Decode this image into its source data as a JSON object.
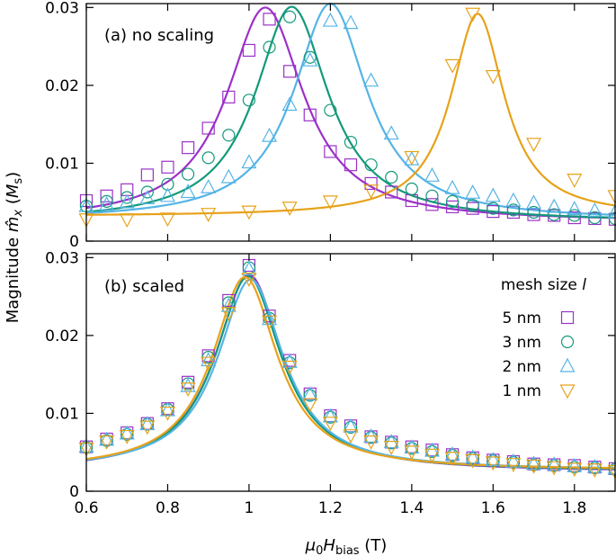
{
  "chart_data": {
    "type": "line",
    "colors": {
      "5 nm": "#9b31c8",
      "3 nm": "#13997a",
      "2 nm": "#55b4e6",
      "1 nm": "#e7a21a"
    },
    "x_ticks": [
      "0.6",
      "0.8",
      "1",
      "1.2",
      "1.4",
      "1.6",
      "1.8"
    ],
    "x_tick_values": [
      0.6,
      0.8,
      1.0,
      1.2,
      1.4,
      1.6,
      1.8
    ],
    "xlim": [
      0.6,
      1.9
    ],
    "xlabel": {
      "prefix": "μ",
      "sub0": "0",
      "H": "H",
      "subscript": "bias",
      "unit": " (T)"
    },
    "ylabel": {
      "prefix": "Magnitude ",
      "m": "m̂",
      "sub": "x",
      "unit_open": " (",
      "unit": "M",
      "unit_sub": "s",
      "unit_close": ")"
    },
    "legend": {
      "title": "mesh size ",
      "title_symbol": "l",
      "entries": [
        "5 nm",
        "3 nm",
        "2 nm",
        "1 nm"
      ],
      "markers": [
        "square",
        "circle",
        "triangle-up",
        "triangle-down"
      ]
    },
    "panels": [
      {
        "label": "(a) no scaling",
        "ylim": [
          0,
          0.0305
        ],
        "y_ticks": [
          "0",
          "0.01",
          "0.02",
          "0.03"
        ],
        "y_tick_values": [
          0,
          0.01,
          0.02,
          0.03
        ],
        "series": [
          {
            "name": "5 nm",
            "marker": "square",
            "curve": {
              "x0": 1.04,
              "gamma": 0.115,
              "amp": 0.0275,
              "base": 0.0025
            },
            "points_x": [
              0.6,
              0.65,
              0.7,
              0.75,
              0.8,
              0.85,
              0.9,
              0.95,
              1.0,
              1.05,
              1.1,
              1.15,
              1.2,
              1.25,
              1.3,
              1.35,
              1.4,
              1.45,
              1.5,
              1.55,
              1.6,
              1.65,
              1.7,
              1.75,
              1.8,
              1.85,
              1.9
            ],
            "points_y": [
              0.0052,
              0.0058,
              0.0066,
              0.0085,
              0.0095,
              0.012,
              0.0145,
              0.0185,
              0.0245,
              0.0285,
              0.0218,
              0.0162,
              0.0115,
              0.0098,
              0.0074,
              0.0063,
              0.0052,
              0.0047,
              0.0044,
              0.0042,
              0.0038,
              0.0037,
              0.0034,
              0.0033,
              0.003,
              0.0029,
              0.0028
            ]
          },
          {
            "name": "3 nm",
            "marker": "circle",
            "curve": {
              "x0": 1.105,
              "gamma": 0.11,
              "amp": 0.0276,
              "base": 0.0025
            },
            "points_x": [
              0.6,
              0.65,
              0.7,
              0.75,
              0.8,
              0.85,
              0.9,
              0.95,
              1.0,
              1.05,
              1.1,
              1.15,
              1.2,
              1.25,
              1.3,
              1.35,
              1.4,
              1.45,
              1.5,
              1.55,
              1.6,
              1.65,
              1.7,
              1.75,
              1.8,
              1.85,
              1.9
            ],
            "points_y": [
              0.0045,
              0.0051,
              0.0056,
              0.0063,
              0.0073,
              0.0086,
              0.0107,
              0.0136,
              0.0181,
              0.0249,
              0.0288,
              0.0236,
              0.0168,
              0.0127,
              0.0098,
              0.0082,
              0.0067,
              0.0058,
              0.0051,
              0.0046,
              0.0042,
              0.004,
              0.0037,
              0.0034,
              0.0033,
              0.003,
              0.0029
            ]
          },
          {
            "name": "2 nm",
            "marker": "triangle-up",
            "curve": {
              "x0": 1.2,
              "gamma": 0.11,
              "amp": 0.0278,
              "base": 0.0027
            },
            "points_x": [
              0.6,
              0.65,
              0.7,
              0.75,
              0.8,
              0.85,
              0.9,
              0.95,
              1.0,
              1.05,
              1.1,
              1.15,
              1.2,
              1.25,
              1.3,
              1.35,
              1.4,
              1.45,
              1.5,
              1.55,
              1.6,
              1.65,
              1.7,
              1.75,
              1.8,
              1.85,
              1.9
            ],
            "points_y": [
              0.0045,
              0.0047,
              0.005,
              0.0055,
              0.0058,
              0.0063,
              0.0069,
              0.0082,
              0.0101,
              0.0135,
              0.0175,
              0.0232,
              0.0283,
              0.028,
              0.0206,
              0.0138,
              0.0105,
              0.0084,
              0.0068,
              0.0062,
              0.0058,
              0.0052,
              0.0049,
              0.0044,
              0.0041,
              0.0039,
              0.0037
            ]
          },
          {
            "name": "1 nm",
            "marker": "triangle-down",
            "curve": {
              "x0": 1.562,
              "gamma": 0.08,
              "amp": 0.026,
              "base": 0.0032
            },
            "points_x": [
              0.6,
              0.7,
              0.8,
              0.9,
              1.0,
              1.1,
              1.2,
              1.3,
              1.4,
              1.5,
              1.55,
              1.6,
              1.7,
              1.8,
              1.9
            ],
            "points_y": [
              0.0028,
              0.0028,
              0.0029,
              0.0035,
              0.0038,
              0.0043,
              0.0051,
              0.0065,
              0.0108,
              0.0226,
              0.0292,
              0.0212,
              0.0125,
              0.0079,
              0.0058
            ]
          }
        ]
      },
      {
        "label": "(b) scaled",
        "ylim": [
          0,
          0.0305
        ],
        "y_ticks": [
          "0",
          "0.01",
          "0.02",
          "0.03"
        ],
        "y_tick_values": [
          0,
          0.01,
          0.02,
          0.03
        ],
        "series": [
          {
            "name": "5 nm",
            "marker": "square",
            "curve": {
              "x0": 1.0,
              "gamma": 0.1,
              "amp": 0.0253,
              "base": 0.0025
            },
            "points_x": [
              0.6,
              0.65,
              0.7,
              0.75,
              0.8,
              0.85,
              0.9,
              0.95,
              1.0,
              1.05,
              1.1,
              1.15,
              1.2,
              1.25,
              1.3,
              1.35,
              1.4,
              1.45,
              1.5,
              1.55,
              1.6,
              1.65,
              1.7,
              1.75,
              1.8,
              1.85,
              1.9
            ],
            "points_y": [
              0.0057,
              0.0067,
              0.0075,
              0.0087,
              0.0106,
              0.014,
              0.0174,
              0.0245,
              0.029,
              0.0225,
              0.0168,
              0.0125,
              0.0097,
              0.0084,
              0.007,
              0.0063,
              0.0057,
              0.0053,
              0.0047,
              0.0043,
              0.004,
              0.0038,
              0.0035,
              0.0034,
              0.0033,
              0.0031,
              0.0029
            ]
          },
          {
            "name": "3 nm",
            "marker": "circle",
            "curve": {
              "x0": 0.998,
              "gamma": 0.098,
              "amp": 0.025,
              "base": 0.0026
            },
            "points_x": [
              0.6,
              0.65,
              0.7,
              0.75,
              0.8,
              0.85,
              0.9,
              0.95,
              1.0,
              1.05,
              1.1,
              1.15,
              1.2,
              1.25,
              1.3,
              1.35,
              1.4,
              1.45,
              1.5,
              1.55,
              1.6,
              1.65,
              1.7,
              1.75,
              1.8,
              1.85,
              1.9
            ],
            "points_y": [
              0.0056,
              0.0065,
              0.0073,
              0.0086,
              0.0105,
              0.0138,
              0.0172,
              0.0242,
              0.0287,
              0.0222,
              0.0165,
              0.0123,
              0.0095,
              0.0082,
              0.0069,
              0.0062,
              0.0055,
              0.0051,
              0.0046,
              0.0042,
              0.0039,
              0.0037,
              0.0034,
              0.0033,
              0.0031,
              0.003,
              0.0028
            ]
          },
          {
            "name": "2 nm",
            "marker": "triangle-up",
            "curve": {
              "x0": 1.004,
              "gamma": 0.098,
              "amp": 0.0245,
              "base": 0.0027
            },
            "points_x": [
              0.6,
              0.65,
              0.7,
              0.75,
              0.8,
              0.85,
              0.9,
              0.95,
              1.0,
              1.05,
              1.1,
              1.15,
              1.2,
              1.25,
              1.3,
              1.35,
              1.4,
              1.45,
              1.5,
              1.55,
              1.6,
              1.65,
              1.7,
              1.75,
              1.8,
              1.85,
              1.9
            ],
            "points_y": [
              0.0057,
              0.0066,
              0.0074,
              0.0086,
              0.0104,
              0.0135,
              0.0168,
              0.0238,
              0.0285,
              0.0221,
              0.0166,
              0.0124,
              0.0096,
              0.0083,
              0.007,
              0.0063,
              0.0056,
              0.0052,
              0.0047,
              0.0043,
              0.004,
              0.0038,
              0.0035,
              0.0034,
              0.0032,
              0.0031,
              0.0029
            ]
          },
          {
            "name": "1 nm",
            "marker": "triangle-down",
            "curve": {
              "x0": 0.99,
              "gamma": 0.097,
              "amp": 0.0248,
              "base": 0.0027
            },
            "points_x": [
              0.6,
              0.65,
              0.7,
              0.75,
              0.8,
              0.85,
              0.9,
              0.95,
              1.0,
              1.05,
              1.1,
              1.15,
              1.2,
              1.25,
              1.3,
              1.35,
              1.4,
              1.45,
              1.5,
              1.55,
              1.6,
              1.65,
              1.7,
              1.75,
              1.8,
              1.85,
              1.9
            ],
            "points_y": [
              0.0055,
              0.0064,
              0.0071,
              0.0083,
              0.0101,
              0.0132,
              0.0165,
              0.0229,
              0.0273,
              0.0218,
              0.016,
              0.0112,
              0.0088,
              0.0072,
              0.0064,
              0.0057,
              0.0051,
              0.0047,
              0.0043,
              0.004,
              0.0037,
              0.0035,
              0.0033,
              0.0031,
              0.0029,
              0.0028,
              0.0026
            ]
          }
        ]
      }
    ]
  }
}
